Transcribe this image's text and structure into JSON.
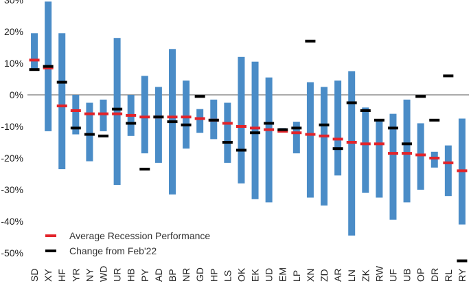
{
  "chart_data": {
    "type": "bar",
    "title": "",
    "xlabel": "",
    "ylabel": "",
    "ylim": [
      -55,
      30
    ],
    "yticks": [
      30,
      20,
      10,
      0,
      -10,
      -20,
      -30,
      -40,
      -50
    ],
    "ytick_labels": [
      "30%",
      "20%",
      "10%",
      "0%",
      "-10%",
      "-20%",
      "-30%",
      "-40%",
      "-50%"
    ],
    "categories": [
      "SD",
      "XY",
      "HF",
      "YR",
      "NY",
      "WD",
      "UR",
      "HB",
      "PY",
      "AD",
      "BP",
      "NR",
      "GD",
      "HP",
      "LS",
      "OK",
      "EK",
      "UD",
      "EM",
      "LP",
      "XN",
      "ZD",
      "AR",
      "LN",
      "ZK",
      "RW",
      "UF",
      "UB",
      "OP",
      "DR",
      "RL",
      "RY"
    ],
    "range_low": [
      8,
      -11.5,
      -23.5,
      -12.5,
      -21,
      -11.5,
      -28.5,
      -13,
      -18.5,
      -21.5,
      -31.5,
      -17,
      -12,
      -14,
      -21.5,
      -28,
      -33,
      -34,
      -10.5,
      -18.5,
      -32.5,
      -35,
      -25.5,
      -44.5,
      -31,
      -32.5,
      -39.5,
      -34,
      -30,
      -23,
      -32,
      -41
    ],
    "range_high": [
      19.5,
      29.5,
      19.5,
      0,
      -2.5,
      -1.5,
      18,
      0,
      6,
      2.5,
      14.5,
      4.5,
      -4.5,
      -1.5,
      -2.5,
      12,
      10.5,
      5.5,
      -11,
      -8.5,
      4,
      2.5,
      4.5,
      7.5,
      -4,
      -8,
      -6,
      -1.5,
      -9,
      -18,
      -16,
      -7.5
    ],
    "series": [
      {
        "name": "Average Recession Performance",
        "color": "#e2232a",
        "values": [
          11,
          8.5,
          -3.5,
          -5,
          -6,
          -6,
          -6,
          -6.5,
          -7,
          -7,
          -7,
          -7,
          -7.5,
          -8,
          -9,
          -10,
          -10.5,
          -11,
          -11.5,
          -12,
          -12.5,
          -13,
          -14,
          -15,
          -15.5,
          -15.5,
          -18.5,
          -18.5,
          -19,
          -20,
          -21.5,
          -24
        ]
      },
      {
        "name": "Change from Feb'22",
        "color": "#000000",
        "values": [
          8,
          9,
          4,
          -10.5,
          -12.5,
          -13,
          -4.5,
          -9,
          -23.5,
          -7,
          -8.5,
          -9.5,
          -0.5,
          -8,
          -15,
          -17.5,
          -12,
          -9,
          -11,
          -10.5,
          17,
          -9.5,
          -17,
          -2.5,
          -5,
          -8,
          -10.5,
          -15.5,
          -0.5,
          -8,
          6,
          -52.5
        ]
      }
    ],
    "bar_color": "#4a8cc7",
    "legend_position": "bottom-left",
    "zero_line": true
  }
}
